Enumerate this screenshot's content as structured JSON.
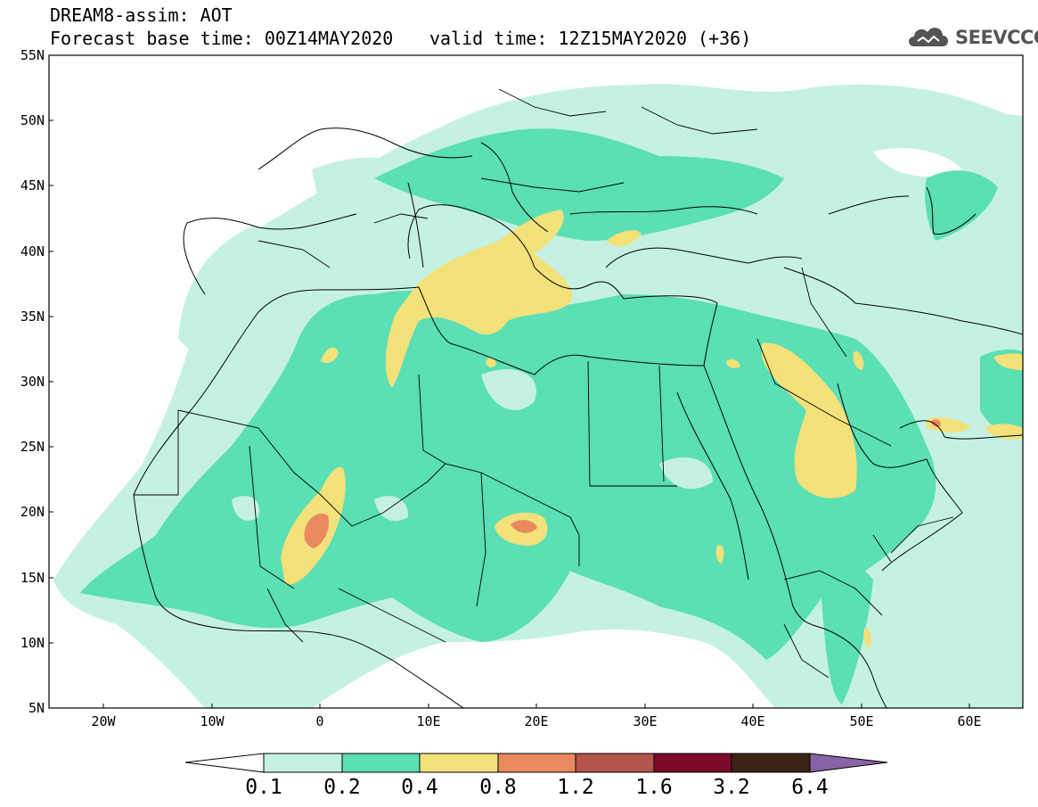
{
  "header": {
    "line1": "DREAM8-assim: AOT",
    "line2_base": "Forecast base time: 00Z14MAY2020",
    "line2_valid": "valid time: 12Z15MAY2020 (+36)"
  },
  "logo": {
    "text": "SEEVCCC",
    "icon": "cloud-icon"
  },
  "map": {
    "lat_labels": [
      "55N",
      "50N",
      "45N",
      "40N",
      "35N",
      "30N",
      "25N",
      "20N",
      "15N",
      "10N",
      "5N"
    ],
    "lon_labels": [
      "20W",
      "10W",
      "0",
      "10E",
      "20E",
      "30E",
      "40E",
      "50E",
      "60E"
    ]
  },
  "colorbar": {
    "labels": [
      "0.1",
      "0.2",
      "0.4",
      "0.8",
      "1.2",
      "1.6",
      "3.2",
      "6.4"
    ],
    "colors": [
      "#ffffff",
      "#c5f1e4",
      "#5bdfb5",
      "#f3e17a",
      "#e88a5e",
      "#b4554b",
      "#7a0b29",
      "#3b2413",
      "#8a62a8"
    ]
  }
}
